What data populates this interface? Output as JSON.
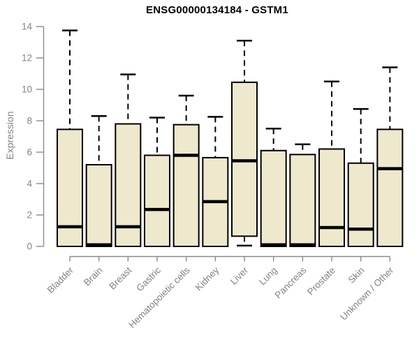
{
  "chart_data": {
    "type": "boxplot",
    "title": "ENSG00000134184 - GSTM1",
    "ylabel": "Expression",
    "ylim": [
      0,
      14
    ],
    "y_ticks": [
      0,
      2,
      4,
      6,
      8,
      10,
      12,
      14
    ],
    "grid": false,
    "legend": "none",
    "categories": [
      "Bladder",
      "Brain",
      "Breast",
      "Gastric",
      "Hematopoietic cells",
      "Kidney",
      "Liver",
      "Lung",
      "Pancreas",
      "Prostate",
      "Skin",
      "Unknown / Other"
    ],
    "series": [
      {
        "category": "Bladder",
        "whisker_low": 0,
        "q1": 0,
        "median": 1.25,
        "q3": 7.45,
        "whisker_high": 13.75
      },
      {
        "category": "Brain",
        "whisker_low": 0,
        "q1": 0,
        "median": 0.1,
        "q3": 5.2,
        "whisker_high": 8.3
      },
      {
        "category": "Breast",
        "whisker_low": 0,
        "q1": 0,
        "median": 1.25,
        "q3": 7.8,
        "whisker_high": 10.95
      },
      {
        "category": "Gastric",
        "whisker_low": 0,
        "q1": 0,
        "median": 2.35,
        "q3": 5.8,
        "whisker_high": 8.2
      },
      {
        "category": "Hematopoietic cells",
        "whisker_low": 0,
        "q1": 0,
        "median": 5.8,
        "q3": 7.75,
        "whisker_high": 9.6
      },
      {
        "category": "Kidney",
        "whisker_low": 0,
        "q1": 0,
        "median": 2.85,
        "q3": 5.65,
        "whisker_high": 8.25
      },
      {
        "category": "Liver",
        "whisker_low": 0.05,
        "q1": 0.65,
        "median": 5.45,
        "q3": 10.45,
        "whisker_high": 13.1
      },
      {
        "category": "Lung",
        "whisker_low": 0,
        "q1": 0,
        "median": 0.1,
        "q3": 6.1,
        "whisker_high": 7.5
      },
      {
        "category": "Pancreas",
        "whisker_low": 0,
        "q1": 0,
        "median": 0.1,
        "q3": 5.85,
        "whisker_high": 6.5
      },
      {
        "category": "Prostate",
        "whisker_low": 0,
        "q1": 0,
        "median": 1.2,
        "q3": 6.2,
        "whisker_high": 10.5
      },
      {
        "category": "Skin",
        "whisker_low": 0,
        "q1": 0,
        "median": 1.1,
        "q3": 5.3,
        "whisker_high": 8.75
      },
      {
        "category": "Unknown / Other",
        "whisker_low": 0,
        "q1": 0,
        "median": 4.95,
        "q3": 7.45,
        "whisker_high": 11.4
      }
    ],
    "colors": {
      "box_fill": "#EEE8CD",
      "box_border": "#000000",
      "median": "#000000",
      "whisker": "#000000",
      "axis": "#8a8a8a",
      "tick_label": "#848484",
      "title": "#000000"
    }
  }
}
